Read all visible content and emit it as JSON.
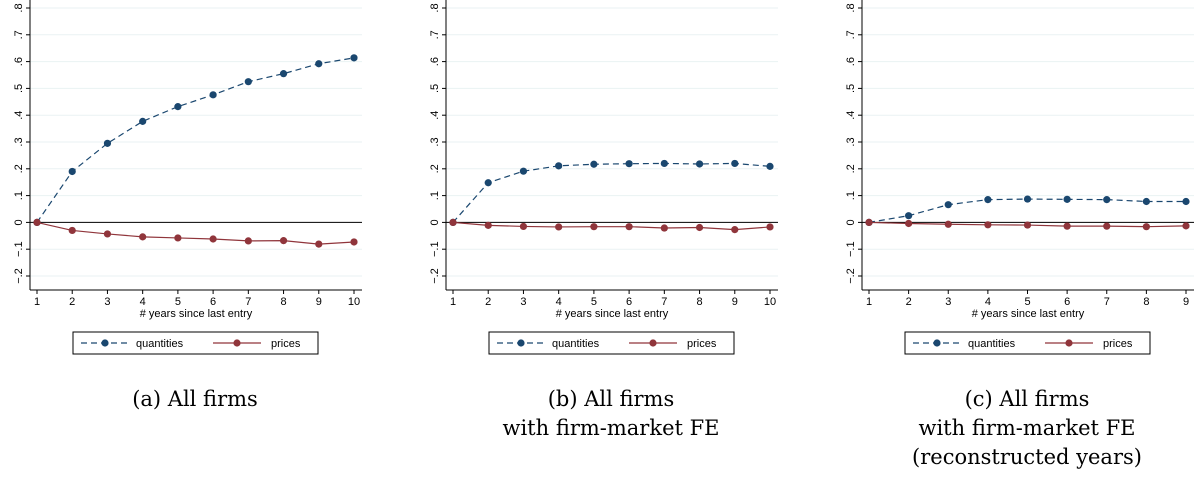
{
  "chart_data": [
    {
      "type": "line",
      "xlabel": "# years since last entry",
      "ylabel": "",
      "x": [
        1,
        2,
        3,
        4,
        5,
        6,
        7,
        8,
        9,
        10
      ],
      "xlim": [
        1,
        10
      ],
      "ylim": [
        -0.2,
        0.8
      ],
      "yticks": [
        "−.2",
        "−.1",
        "0",
        ".1",
        ".2",
        ".3",
        ".4",
        ".5",
        ".6",
        ".7",
        ".8"
      ],
      "grid": true,
      "legend_position": "bottom",
      "series": [
        {
          "name": "quantities",
          "color": "#1a476f",
          "dash": true,
          "values": [
            0.0,
            0.19,
            0.295,
            0.377,
            0.432,
            0.476,
            0.525,
            0.555,
            0.592,
            0.614
          ]
        },
        {
          "name": "prices",
          "color": "#90353b",
          "dash": false,
          "values": [
            0.0,
            -0.03,
            -0.043,
            -0.054,
            -0.058,
            -0.062,
            -0.069,
            -0.068,
            -0.081,
            -0.073
          ]
        }
      ],
      "caption": [
        "(a) All firms"
      ]
    },
    {
      "type": "line",
      "xlabel": "# years since last entry",
      "ylabel": "",
      "x": [
        1,
        2,
        3,
        4,
        5,
        6,
        7,
        8,
        9,
        10
      ],
      "xlim": [
        1,
        10
      ],
      "ylim": [
        -0.2,
        0.8
      ],
      "yticks": [
        "−.2",
        "−.1",
        "0",
        ".1",
        ".2",
        ".3",
        ".4",
        ".5",
        ".6",
        ".7",
        ".8"
      ],
      "grid": true,
      "legend_position": "bottom",
      "series": [
        {
          "name": "quantities",
          "color": "#1a476f",
          "dash": true,
          "values": [
            0.0,
            0.148,
            0.191,
            0.211,
            0.217,
            0.219,
            0.22,
            0.218,
            0.22,
            0.209
          ]
        },
        {
          "name": "prices",
          "color": "#90353b",
          "dash": false,
          "values": [
            0.0,
            -0.011,
            -0.015,
            -0.017,
            -0.016,
            -0.016,
            -0.021,
            -0.019,
            -0.027,
            -0.017
          ]
        }
      ],
      "caption": [
        "(b) All firms",
        "with firm-market FE"
      ]
    },
    {
      "type": "line",
      "xlabel": "# years since last entry",
      "ylabel": "",
      "x": [
        1,
        2,
        3,
        4,
        5,
        6,
        7,
        8,
        9
      ],
      "xlim": [
        1,
        9
      ],
      "ylim": [
        -0.2,
        0.8
      ],
      "yticks": [
        "−.2",
        "−.1",
        "0",
        ".1",
        ".2",
        ".3",
        ".4",
        ".5",
        ".6",
        ".7",
        ".8"
      ],
      "grid": true,
      "legend_position": "bottom",
      "series": [
        {
          "name": "quantities",
          "color": "#1a476f",
          "dash": true,
          "values": [
            0.0,
            0.025,
            0.066,
            0.085,
            0.087,
            0.086,
            0.085,
            0.078,
            0.078
          ]
        },
        {
          "name": "prices",
          "color": "#90353b",
          "dash": false,
          "values": [
            0.0,
            -0.004,
            -0.007,
            -0.009,
            -0.01,
            -0.014,
            -0.014,
            -0.016,
            -0.013
          ]
        }
      ],
      "caption": [
        "(c) All firms",
        "with firm-market FE",
        "(reconstructed years)"
      ]
    }
  ]
}
